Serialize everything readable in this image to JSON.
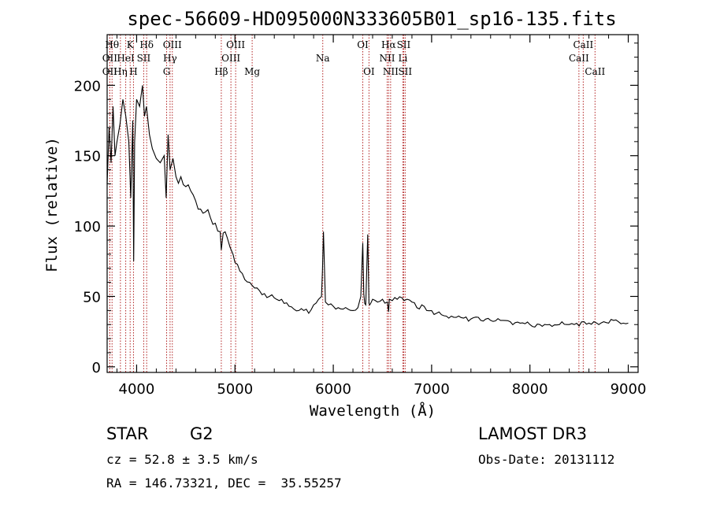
{
  "chart_data": {
    "type": "line",
    "title": "spec-56609-HD095000N333605B01_sp16-135.fits",
    "xlabel": "Wavelength (Å)",
    "ylabel": "Flux (relative)",
    "xlim": [
      3700,
      9100
    ],
    "ylim": [
      -4,
      236
    ],
    "x_ticks": [
      4000,
      5000,
      6000,
      7000,
      8000,
      9000
    ],
    "y_ticks": [
      0,
      50,
      100,
      150,
      200
    ],
    "series": [
      {
        "name": "spectrum",
        "x": [
          3700,
          3720,
          3740,
          3760,
          3780,
          3800,
          3830,
          3860,
          3890,
          3920,
          3940,
          3960,
          3970,
          3980,
          4000,
          4030,
          4060,
          4080,
          4100,
          4130,
          4160,
          4200,
          4240,
          4280,
          4300,
          4320,
          4340,
          4370,
          4400,
          4450,
          4500,
          4550,
          4600,
          4650,
          4700,
          4750,
          4800,
          4850,
          4861,
          4880,
          4900,
          4920,
          4950,
          4980,
          5000,
          5050,
          5100,
          5150,
          5200,
          5250,
          5300,
          5350,
          5400,
          5450,
          5500,
          5550,
          5600,
          5650,
          5700,
          5750,
          5800,
          5850,
          5880,
          5890,
          5900,
          5920,
          5950,
          6000,
          6050,
          6100,
          6150,
          6200,
          6250,
          6280,
          6300,
          6310,
          6320,
          6330,
          6350,
          6363,
          6370,
          6380,
          6400,
          6450,
          6500,
          6550,
          6563,
          6570,
          6600,
          6650,
          6700,
          6720,
          6750,
          6800,
          6850,
          6900,
          6950,
          7000,
          7050,
          7100,
          7150,
          7200,
          7300,
          7400,
          7500,
          7600,
          7700,
          7800,
          7900,
          8000,
          8100,
          8200,
          8300,
          8400,
          8500,
          8550,
          8600,
          8650,
          8700,
          8750,
          8800,
          8850,
          8900,
          8950,
          9000
        ],
        "y": [
          130,
          170,
          145,
          185,
          150,
          160,
          172,
          190,
          178,
          160,
          120,
          175,
          75,
          160,
          190,
          185,
          200,
          178,
          185,
          165,
          155,
          148,
          145,
          150,
          120,
          165,
          140,
          148,
          135,
          135,
          128,
          125,
          118,
          112,
          110,
          106,
          102,
          96,
          83,
          95,
          96,
          92,
          85,
          80,
          74,
          68,
          62,
          60,
          56,
          54,
          52,
          50,
          49,
          47,
          45,
          43,
          41,
          40,
          40,
          38,
          44,
          48,
          50,
          68,
          96,
          46,
          44,
          43,
          42,
          41,
          41,
          40,
          42,
          50,
          88,
          52,
          45,
          44,
          94,
          45,
          44,
          45,
          48,
          46,
          48,
          46,
          39,
          48,
          47,
          48,
          49,
          47,
          48,
          46,
          42,
          44,
          40,
          40,
          38,
          37,
          36,
          36,
          35,
          34,
          33,
          33,
          33,
          32,
          31,
          30,
          30,
          30,
          30,
          30,
          29,
          32,
          31,
          32,
          30,
          32,
          31,
          33,
          32,
          31,
          31
        ]
      }
    ],
    "line_markers": [
      {
        "label": "OII",
        "x": 3727,
        "row": 2
      },
      {
        "label": "Hθ",
        "x": 3750,
        "row": 0
      },
      {
        "label": "OII",
        "x": 3727,
        "row": 1
      },
      {
        "label": "Hη",
        "x": 3835,
        "row": 2
      },
      {
        "label": "HeI",
        "x": 3889,
        "row": 1
      },
      {
        "label": "K",
        "x": 3934,
        "row": 0
      },
      {
        "label": "H",
        "x": 3968,
        "row": 2
      },
      {
        "label": "SII",
        "x": 4072,
        "row": 1
      },
      {
        "label": "Hδ",
        "x": 4102,
        "row": 0
      },
      {
        "label": "OIII",
        "x": 4363,
        "row": 0
      },
      {
        "label": "Hγ",
        "x": 4340,
        "row": 1
      },
      {
        "label": "G",
        "x": 4305,
        "row": 2
      },
      {
        "label": "Hβ",
        "x": 4861,
        "row": 2
      },
      {
        "label": "OIII",
        "x": 5007,
        "row": 0
      },
      {
        "label": "OIII",
        "x": 4959,
        "row": 1
      },
      {
        "label": "Mg",
        "x": 5175,
        "row": 2
      },
      {
        "label": "Na",
        "x": 5893,
        "row": 1
      },
      {
        "label": "OI",
        "x": 6300,
        "row": 0
      },
      {
        "label": "OI",
        "x": 6363,
        "row": 2
      },
      {
        "label": "Hα",
        "x": 6563,
        "row": 0
      },
      {
        "label": "SII",
        "x": 6716,
        "row": 0
      },
      {
        "label": "NII",
        "x": 6548,
        "row": 1
      },
      {
        "label": "Li",
        "x": 6708,
        "row": 1
      },
      {
        "label": "NII",
        "x": 6583,
        "row": 2
      },
      {
        "label": "SII",
        "x": 6731,
        "row": 2
      },
      {
        "label": "CaII",
        "x": 8542,
        "row": 0
      },
      {
        "label": "CaII",
        "x": 8498,
        "row": 1
      },
      {
        "label": "CaII",
        "x": 8662,
        "row": 2
      }
    ],
    "marker_color": "#b22222",
    "line_color": "#000000"
  },
  "info": {
    "object_class": "STAR",
    "subclass": "G2",
    "survey": "LAMOST DR3",
    "redshift": "cz = 52.8 ± 3.5 km/s",
    "obs_date": "Obs-Date: 20131112",
    "coords": "RA = 146.73321, DEC =  35.55257"
  }
}
